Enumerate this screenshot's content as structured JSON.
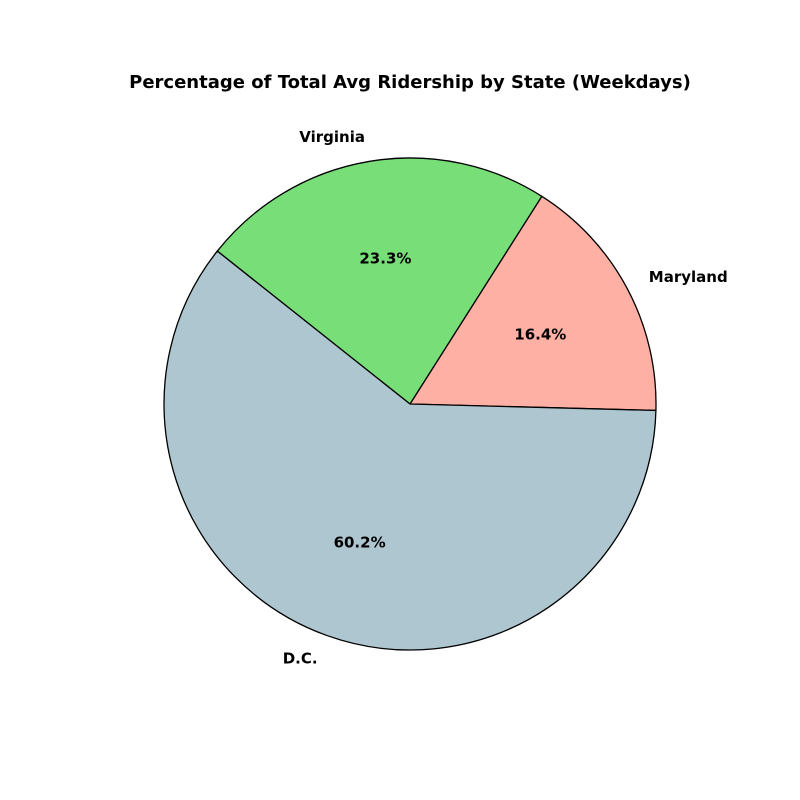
{
  "chart_data": {
    "type": "pie",
    "title": "Percentage of Total Avg Ridership by State (Weekdays)",
    "slices": [
      {
        "label": "Maryland",
        "value": 16.4,
        "pct_label": "16.4%",
        "color": "#ffb0a4"
      },
      {
        "label": "Virginia",
        "value": 23.3,
        "pct_label": "23.3%",
        "color": "#78de78"
      },
      {
        "label": "D.C.",
        "value": 60.2,
        "pct_label": "60.2%",
        "color": "#aec6cf"
      }
    ]
  }
}
